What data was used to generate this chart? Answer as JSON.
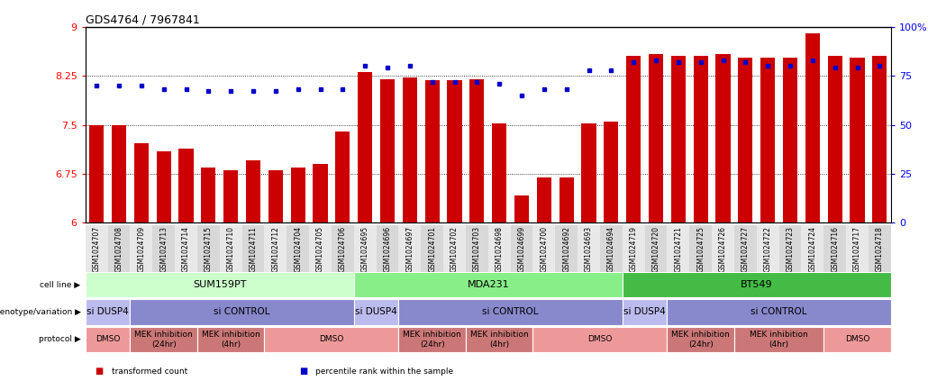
{
  "title": "GDS4764 / 7967841",
  "samples": [
    "GSM1024707",
    "GSM1024708",
    "GSM1024709",
    "GSM1024713",
    "GSM1024714",
    "GSM1024715",
    "GSM1024710",
    "GSM1024711",
    "GSM1024712",
    "GSM1024704",
    "GSM1024705",
    "GSM1024706",
    "GSM1024695",
    "GSM1024696",
    "GSM1024697",
    "GSM1024701",
    "GSM1024702",
    "GSM1024703",
    "GSM1024698",
    "GSM1024699",
    "GSM1024700",
    "GSM1024692",
    "GSM1024693",
    "GSM1024694",
    "GSM1024719",
    "GSM1024720",
    "GSM1024721",
    "GSM1024725",
    "GSM1024726",
    "GSM1024727",
    "GSM1024722",
    "GSM1024723",
    "GSM1024724",
    "GSM1024716",
    "GSM1024717",
    "GSM1024718"
  ],
  "bar_values": [
    7.5,
    7.5,
    7.22,
    7.1,
    7.14,
    6.85,
    6.8,
    6.95,
    6.8,
    6.85,
    6.9,
    7.4,
    8.3,
    8.2,
    8.22,
    8.18,
    8.18,
    8.2,
    7.52,
    6.42,
    6.7,
    6.7,
    7.52,
    7.55,
    8.55,
    8.58,
    8.55,
    8.55,
    8.58,
    8.52,
    8.52,
    8.52,
    8.9,
    8.55,
    8.52,
    8.55
  ],
  "percentile_values": [
    70,
    70,
    70,
    68,
    68,
    67,
    67,
    67,
    67,
    68,
    68,
    68,
    80,
    79,
    80,
    72,
    72,
    72,
    71,
    65,
    68,
    68,
    78,
    78,
    82,
    83,
    82,
    82,
    83,
    82,
    80,
    80,
    83,
    79,
    79,
    80
  ],
  "ylim_left": [
    6.0,
    9.0
  ],
  "ylim_right": [
    0,
    100
  ],
  "yticks_left": [
    6.0,
    6.75,
    7.5,
    8.25,
    9.0
  ],
  "yticks_right": [
    0,
    25,
    50,
    75,
    100
  ],
  "bar_color": "#cc0000",
  "dot_color": "#0000cc",
  "cell_lines": [
    {
      "label": "SUM159PT",
      "start": 0,
      "end": 12,
      "color": "#ccffcc"
    },
    {
      "label": "MDA231",
      "start": 12,
      "end": 24,
      "color": "#88ee88"
    },
    {
      "label": "BT549",
      "start": 24,
      "end": 36,
      "color": "#44bb44"
    }
  ],
  "genotypes": [
    {
      "label": "si DUSP4",
      "start": 0,
      "end": 2,
      "color": "#bbbbee"
    },
    {
      "label": "si CONTROL",
      "start": 2,
      "end": 12,
      "color": "#8888cc"
    },
    {
      "label": "si DUSP4",
      "start": 12,
      "end": 14,
      "color": "#bbbbee"
    },
    {
      "label": "si CONTROL",
      "start": 14,
      "end": 24,
      "color": "#8888cc"
    },
    {
      "label": "si DUSP4",
      "start": 24,
      "end": 26,
      "color": "#bbbbee"
    },
    {
      "label": "si CONTROL",
      "start": 26,
      "end": 36,
      "color": "#8888cc"
    }
  ],
  "protocols": [
    {
      "label": "DMSO",
      "start": 0,
      "end": 2,
      "color": "#ee9999"
    },
    {
      "label": "MEK inhibition\n(24hr)",
      "start": 2,
      "end": 5,
      "color": "#cc7777"
    },
    {
      "label": "MEK inhibition\n(4hr)",
      "start": 5,
      "end": 8,
      "color": "#cc7777"
    },
    {
      "label": "DMSO",
      "start": 8,
      "end": 14,
      "color": "#ee9999"
    },
    {
      "label": "MEK inhibition\n(24hr)",
      "start": 14,
      "end": 17,
      "color": "#cc7777"
    },
    {
      "label": "MEK inhibition\n(4hr)",
      "start": 17,
      "end": 20,
      "color": "#cc7777"
    },
    {
      "label": "DMSO",
      "start": 20,
      "end": 26,
      "color": "#ee9999"
    },
    {
      "label": "MEK inhibition\n(24hr)",
      "start": 26,
      "end": 29,
      "color": "#cc7777"
    },
    {
      "label": "MEK inhibition\n(4hr)",
      "start": 29,
      "end": 33,
      "color": "#cc7777"
    },
    {
      "label": "DMSO",
      "start": 33,
      "end": 36,
      "color": "#ee9999"
    }
  ],
  "row_labels": [
    "cell line",
    "genotype/variation",
    "protocol"
  ],
  "legend_items": [
    {
      "label": "transformed count",
      "color": "#cc0000"
    },
    {
      "label": "percentile rank within the sample",
      "color": "#0000cc"
    }
  ],
  "fig_width": 10.3,
  "fig_height": 4.23,
  "dpi": 100
}
